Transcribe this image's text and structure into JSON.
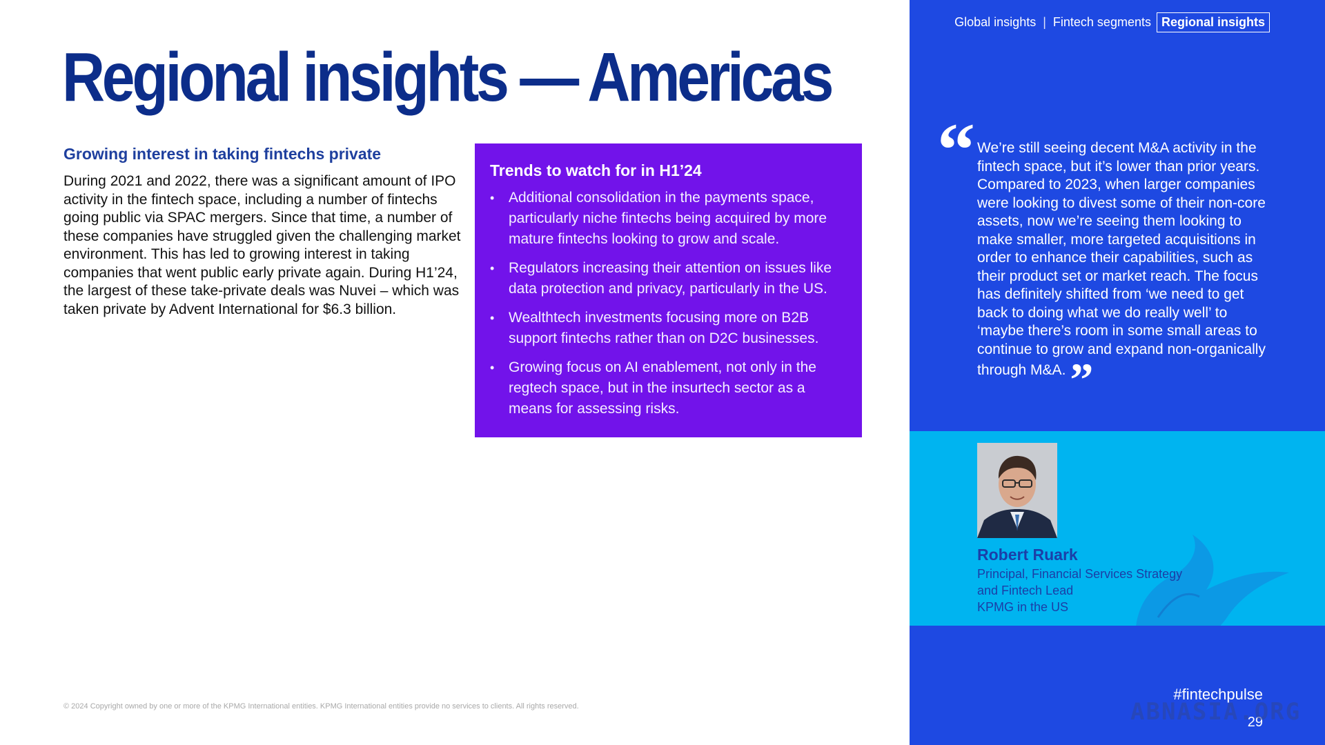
{
  "page": {
    "title": "Regional insights — Americas",
    "copyright": "© 2024 Copyright owned by one or more of the KPMG International entities. KPMG International entities provide no services to clients. All rights reserved.",
    "hashtag": "#fintechpulse",
    "page_number": "29",
    "watermark": "ABNASIA.ORG"
  },
  "nav": {
    "items": [
      {
        "label": "Global insights",
        "active": false
      },
      {
        "label": "Fintech segments",
        "active": false
      },
      {
        "label": "Regional insights",
        "active": true
      }
    ],
    "separator": "|"
  },
  "left": {
    "heading": "Growing interest in taking fintechs private",
    "body": "During 2021 and 2022, there was a significant amount of IPO activity in the fintech space, including a number of fintechs going public via SPAC mergers. Since that time, a number of these companies have struggled given the challenging market environment. This has led to growing interest in taking companies that went public early private again. During H1’24, the largest of these take-private deals was Nuvei – which was taken private by Advent International for $6.3 billion."
  },
  "trends": {
    "heading": "Trends to watch for in H1’24",
    "bullet": "•",
    "items": [
      "Additional consolidation in the payments space, particularly niche fintechs being acquired by more mature fintechs looking to grow and scale.",
      "Regulators increasing their attention on issues like data protection and privacy, particularly in the US.",
      "Wealthtech investments focusing more on B2B support fintechs rather than on D2C businesses.",
      "Growing focus on AI enablement, not only in the regtech space, but in the insurtech sector as a means for assessing risks."
    ]
  },
  "quote": {
    "open_mark": "“",
    "close_mark": "”",
    "text": "We’re still seeing decent M&A activity in the fintech space, but it’s lower than prior years. Compared to 2023, when larger companies were looking to divest some of their non-core assets, now we’re seeing them looking to make smaller, more targeted acquisitions in order to enhance their capabilities, such as their product set or market reach. The focus has definitely shifted from ‘we need to get back to doing what we do really well’ to ‘maybe there’s room in some small areas to continue to grow and expand non-organically through M&A."
  },
  "person": {
    "name": "Robert Ruark",
    "title": "Principal, Financial Services Strategy\nand Fintech Lead\nKPMG in the US"
  },
  "colors": {
    "title_blue": "#0c2d8a",
    "purple_box": "#7213ea",
    "panel_blue": "#1e49e2",
    "band_cyan": "#00b4f0"
  }
}
